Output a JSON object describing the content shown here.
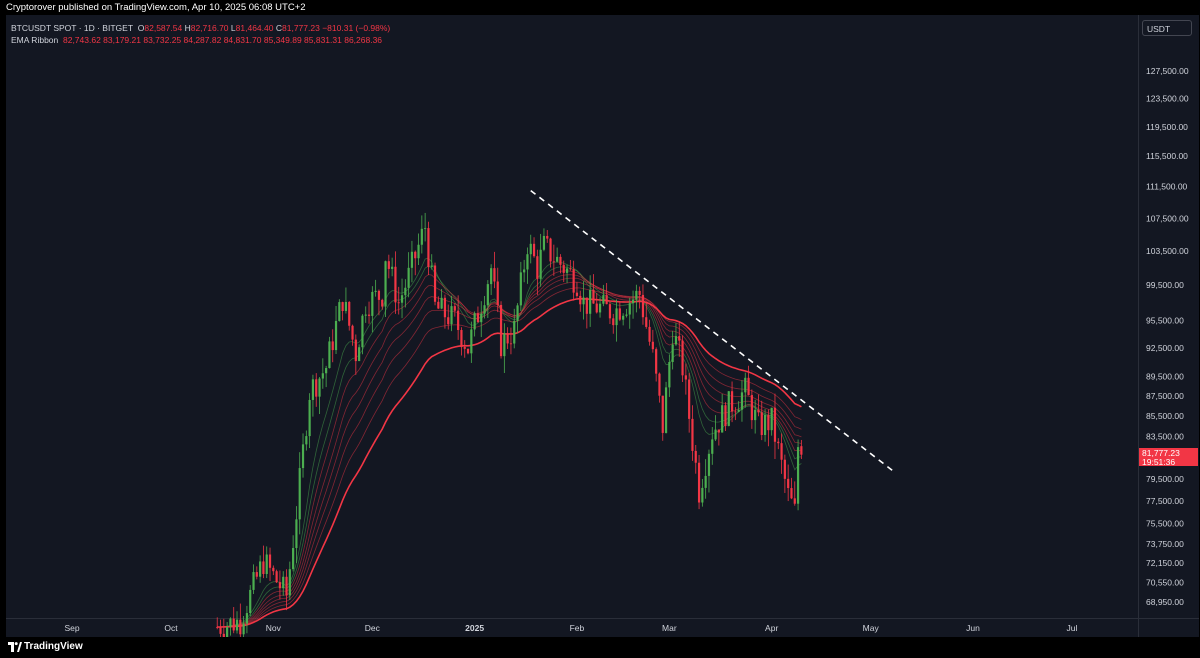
{
  "header": {
    "published": "Cryptorover published on TradingView.com, Apr 10, 2025 06:08 UTC+2"
  },
  "legend": {
    "symbol": "BTCUSDT SPOT · 1D · BITGET",
    "o_label": "O",
    "o_value": "82,587.54",
    "h_label": "H",
    "h_value": "82,716.70",
    "l_label": "L",
    "l_value": "81,464.40",
    "c_label": "C",
    "c_value": "81,777.23",
    "change": "−810.31 (−0.98%)",
    "ema_label": "EMA Ribbon",
    "ema_values": "82,743.62  83,179.21  83,732.25  84,287.82  84,831.70  85,349.89  85,831.31  86,268.36"
  },
  "currency_button": "USDT",
  "price_tag": {
    "price": "81,777.23",
    "countdown": "19:51:36"
  },
  "footer": {
    "brand": "TradingView"
  },
  "colors": {
    "background": "#131722",
    "up": "#4caf50",
    "down": "#f23645",
    "trendline": "#ffffff"
  },
  "chart_data": {
    "type": "candlestick",
    "title": "BTCUSDT SPOT · 1D · BITGET",
    "y_scale": "log",
    "ylim": [
      67700,
      136000
    ],
    "y_ticks": [
      127500,
      123500,
      119500,
      115500,
      111500,
      107500,
      103500,
      99500,
      95500,
      92500,
      89500,
      87500,
      85500,
      83500,
      81777.23,
      79500,
      77500,
      75500,
      73750,
      72150,
      70550,
      68950
    ],
    "y_tick_labels": [
      "127,500.00",
      "123,500.00",
      "119,500.00",
      "115,500.00",
      "111,500.00",
      "107,500.00",
      "103,500.00",
      "99,500.00",
      "95,500.00",
      "92,500.00",
      "89,500.00",
      "87,500.00",
      "85,500.00",
      "83,500.00",
      "81,777.23",
      "79,500.00",
      "77,500.00",
      "75,500.00",
      "73,750.00",
      "72,150.00",
      "70,550.00",
      "68,950.00"
    ],
    "x_tick_labels": [
      "Sep",
      "Oct",
      "Nov",
      "Dec",
      "2025",
      "Feb",
      "Mar",
      "Apr",
      "May",
      "Jun",
      "Jul"
    ],
    "x_tick_dates": [
      "2024-09-01",
      "2024-10-01",
      "2024-11-01",
      "2024-12-01",
      "2025-01-01",
      "2025-02-01",
      "2025-03-01",
      "2025-04-01",
      "2025-05-01",
      "2025-06-01",
      "2025-07-01"
    ],
    "x_range": [
      "2024-08-12",
      "2025-07-21"
    ],
    "close_path": [
      [
        "2024-10-15",
        67000
      ],
      [
        "2024-10-22",
        67500
      ],
      [
        "2024-10-29",
        72300
      ],
      [
        "2024-11-05",
        69500
      ],
      [
        "2024-11-08",
        76500
      ],
      [
        "2024-11-12",
        88000
      ],
      [
        "2024-11-17",
        90500
      ],
      [
        "2024-11-22",
        98000
      ],
      [
        "2024-11-26",
        92000
      ],
      [
        "2024-11-29",
        97500
      ],
      [
        "2024-12-04",
        98500
      ],
      [
        "2024-12-05",
        103000
      ],
      [
        "2024-12-09",
        97500
      ],
      [
        "2024-12-12",
        100500
      ],
      [
        "2024-12-17",
        106500
      ],
      [
        "2024-12-20",
        97000
      ],
      [
        "2024-12-26",
        95500
      ],
      [
        "2024-12-30",
        92500
      ],
      [
        "2025-01-06",
        101500
      ],
      [
        "2025-01-09",
        93000
      ],
      [
        "2025-01-13",
        94500
      ],
      [
        "2025-01-17",
        104500
      ],
      [
        "2025-01-20",
        101500
      ],
      [
        "2025-01-22",
        104000
      ],
      [
        "2025-01-27",
        102000
      ],
      [
        "2025-02-01",
        100000
      ],
      [
        "2025-02-03",
        97500
      ],
      [
        "2025-02-12",
        96500
      ],
      [
        "2025-02-20",
        98500
      ],
      [
        "2025-02-24",
        91500
      ],
      [
        "2025-02-27",
        84500
      ],
      [
        "2025-03-02",
        94500
      ],
      [
        "2025-03-05",
        90500
      ],
      [
        "2025-03-10",
        78500
      ],
      [
        "2025-03-14",
        84000
      ],
      [
        "2025-03-19",
        86500
      ],
      [
        "2025-03-24",
        88000
      ],
      [
        "2025-03-28",
        84500
      ],
      [
        "2025-04-01",
        85000
      ],
      [
        "2025-04-06",
        78000
      ],
      [
        "2025-04-08",
        76500
      ],
      [
        "2025-04-09",
        82587.54
      ],
      [
        "2025-04-10",
        81777.23
      ]
    ],
    "trendline": [
      [
        "2025-01-18",
        111000
      ],
      [
        "2025-05-08",
        80200
      ]
    ],
    "last": {
      "open": 82587.54,
      "high": 82716.7,
      "low": 81464.4,
      "close": 81777.23,
      "change": -810.31,
      "change_pct": -0.98
    },
    "ema_ribbon": [
      82743.62,
      83179.21,
      83732.25,
      84287.82,
      84831.7,
      85349.89,
      85831.31,
      86268.36
    ]
  }
}
